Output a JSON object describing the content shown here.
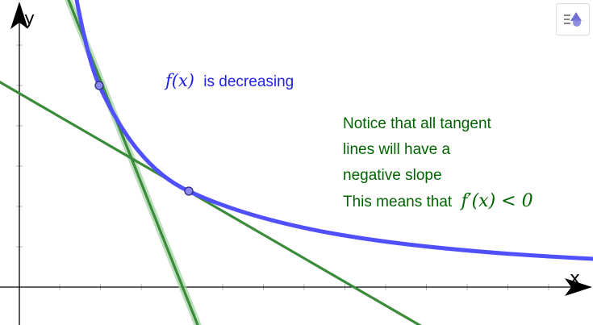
{
  "axes": {
    "x_label": "x",
    "y_label": "y"
  },
  "function_label": {
    "math": "f(x)",
    "text": "is decreasing"
  },
  "notice_lines": [
    "Notice that all tangent",
    "lines will have a",
    "negative slope",
    "This means that"
  ],
  "derivative_math": "f′(x) < 0",
  "colors": {
    "curve": "#5050ff",
    "tangent": "#3a8c3a",
    "tangent_highlight": "#a8d3a8",
    "point_fill": "#8a8aee",
    "point_stroke": "#2a2a7a",
    "notice_text": "#006400",
    "function_text": "#2020ee",
    "axis": "#000000",
    "tick": "#b8b8b8"
  },
  "icons": {
    "style_bar": "style-bar-icon"
  }
}
